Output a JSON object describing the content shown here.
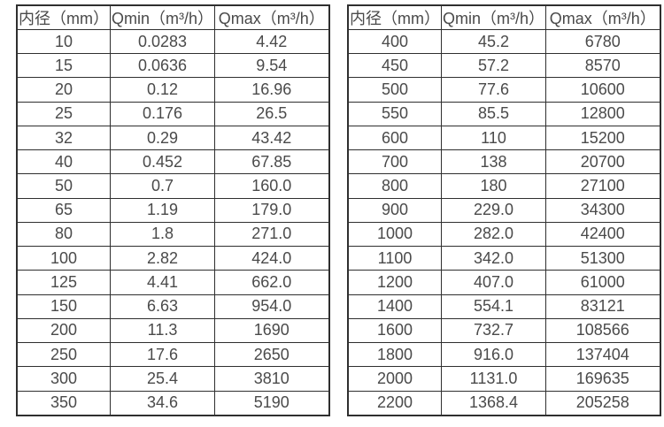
{
  "colors": {
    "border": "#2f2f2f",
    "text": "#4a4a4a",
    "background": "#ffffff"
  },
  "tables": [
    {
      "headers": [
        "内径（mm）",
        "Qmin（m³/h）",
        "Qmax（m³/h）"
      ],
      "rows": [
        [
          "10",
          "0.0283",
          "4.42"
        ],
        [
          "15",
          "0.0636",
          "9.54"
        ],
        [
          "20",
          "0.12",
          "16.96"
        ],
        [
          "25",
          "0.176",
          "26.5"
        ],
        [
          "32",
          "0.29",
          "43.42"
        ],
        [
          "40",
          "0.452",
          "67.85"
        ],
        [
          "50",
          "0.7",
          "160.0"
        ],
        [
          "65",
          "1.19",
          "179.0"
        ],
        [
          "80",
          "1.8",
          "271.0"
        ],
        [
          "100",
          "2.82",
          "424.0"
        ],
        [
          "125",
          "4.41",
          "662.0"
        ],
        [
          "150",
          "6.63",
          "954.0"
        ],
        [
          "200",
          "11.3",
          "1690"
        ],
        [
          "250",
          "17.6",
          "2650"
        ],
        [
          "300",
          "25.4",
          "3810"
        ],
        [
          "350",
          "34.6",
          "5190"
        ]
      ]
    },
    {
      "headers": [
        "内径（mm）",
        "Qmin（m³/h）",
        "Qmax（m³/h）"
      ],
      "rows": [
        [
          "400",
          "45.2",
          "6780"
        ],
        [
          "450",
          "57.2",
          "8570"
        ],
        [
          "500",
          "77.6",
          "10600"
        ],
        [
          "550",
          "85.5",
          "12800"
        ],
        [
          "600",
          "110",
          "15200"
        ],
        [
          "700",
          "138",
          "20700"
        ],
        [
          "800",
          "180",
          "27100"
        ],
        [
          "900",
          "229.0",
          "34300"
        ],
        [
          "1000",
          "282.0",
          "42400"
        ],
        [
          "1100",
          "342.0",
          "51300"
        ],
        [
          "1200",
          "407.0",
          "61000"
        ],
        [
          "1400",
          "554.1",
          "83121"
        ],
        [
          "1600",
          "732.7",
          "108566"
        ],
        [
          "1800",
          "916.0",
          "137404"
        ],
        [
          "2000",
          "1131.0",
          "169635"
        ],
        [
          "2200",
          "1368.4",
          "205258"
        ]
      ]
    }
  ]
}
